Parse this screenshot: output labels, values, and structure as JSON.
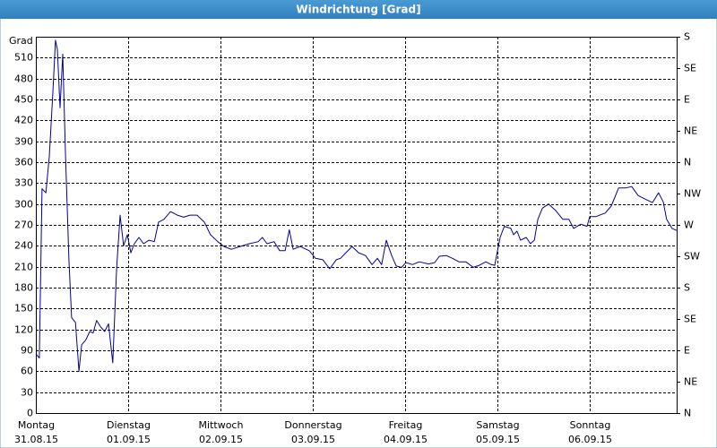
{
  "chart_data": {
    "type": "line",
    "title": "Windrichtung [Grad]",
    "y_label": "Grad",
    "grid": true,
    "xlim": [
      0,
      166.6
    ],
    "xticks": [
      {
        "value": 0,
        "label": "Montag",
        "sublabel": "31.08.15"
      },
      {
        "value": 24,
        "label": "Dienstag",
        "sublabel": "01.09.15"
      },
      {
        "value": 48,
        "label": "Mittwoch",
        "sublabel": "02.09.15"
      },
      {
        "value": 72,
        "label": "Donnerstag",
        "sublabel": "03.09.15"
      },
      {
        "value": 96,
        "label": "Freitag",
        "sublabel": "04.09.15"
      },
      {
        "value": 120,
        "label": "Samstag",
        "sublabel": "05.09.15"
      },
      {
        "value": 144,
        "label": "Sonntag",
        "sublabel": "06.09.15"
      }
    ],
    "ylim": [
      0,
      540
    ],
    "yticks": [
      0,
      30,
      60,
      90,
      120,
      150,
      180,
      210,
      240,
      270,
      300,
      330,
      360,
      390,
      420,
      450,
      480,
      510
    ],
    "y2lim": [
      0,
      540
    ],
    "y2ticks": [
      {
        "value": 0,
        "label": "N"
      },
      {
        "value": 45,
        "label": "NE"
      },
      {
        "value": 90,
        "label": "E"
      },
      {
        "value": 135,
        "label": "SE"
      },
      {
        "value": 180,
        "label": "S"
      },
      {
        "value": 225,
        "label": "SW"
      },
      {
        "value": 270,
        "label": "W"
      },
      {
        "value": 315,
        "label": "NW"
      },
      {
        "value": 360,
        "label": "N"
      },
      {
        "value": 405,
        "label": "NE"
      },
      {
        "value": 450,
        "label": "E"
      },
      {
        "value": 495,
        "label": "SE"
      },
      {
        "value": 540,
        "label": "S"
      }
    ],
    "series": [
      {
        "color": "#000099",
        "x": [
          0,
          0.9,
          1.6,
          2.6,
          3.5,
          4.4,
          5.1,
          5.6,
          6.3,
          7.0,
          7.7,
          8.6,
          9.3,
          10.3,
          11.2,
          11.9,
          13.0,
          14.0,
          14.9,
          15.8,
          16.8,
          17.9,
          18.9,
          20.0,
          21.0,
          21.9,
          22.8,
          23.8,
          24.7,
          25.6,
          26.8,
          28.0,
          29.4,
          30.8,
          31.9,
          33.3,
          35.0,
          36.8,
          38.4,
          40.1,
          41.9,
          43.8,
          45.4,
          47.3,
          48.9,
          50.8,
          53.1,
          55.5,
          57.8,
          58.9,
          60.1,
          61.9,
          63.4,
          64.8,
          65.9,
          66.9,
          68.7,
          71.1,
          72.7,
          74.6,
          76.4,
          78.1,
          79.2,
          80.6,
          82.2,
          83.9,
          85.7,
          87.4,
          88.8,
          89.9,
          91.1,
          92.5,
          93.7,
          95.1,
          96.2,
          97.9,
          99.7,
          102.1,
          103.7,
          104.9,
          106.7,
          108.3,
          110.0,
          111.8,
          113.7,
          115.3,
          117.0,
          118.4,
          119.3,
          120.7,
          121.8,
          123.5,
          124.2,
          125.1,
          126.0,
          127.5,
          128.6,
          129.6,
          130.5,
          131.7,
          133.3,
          135.1,
          137.0,
          138.6,
          139.8,
          141.7,
          143.3,
          144.0,
          145.6,
          148.0,
          149.6,
          151.5,
          153.3,
          154.9,
          156.6,
          158.4,
          160.3,
          161.9,
          163.1,
          164.0,
          165.4,
          166.6
        ],
        "values": [
          85,
          79,
          322,
          316,
          368,
          458,
          535,
          522,
          438,
          515,
          374,
          220,
          137,
          130,
          60,
          98,
          105,
          117,
          115,
          133,
          124,
          117,
          128,
          72,
          207,
          284,
          240,
          256,
          230,
          243,
          252,
          243,
          248,
          246,
          274,
          278,
          289,
          284,
          281,
          284,
          284,
          274,
          256,
          246,
          239,
          235,
          239,
          243,
          246,
          252,
          243,
          246,
          233,
          233,
          263,
          235,
          239,
          233,
          222,
          220,
          207,
          220,
          222,
          230,
          239,
          230,
          226,
          213,
          222,
          213,
          248,
          226,
          211,
          209,
          216,
          213,
          217,
          214,
          216,
          225,
          226,
          222,
          217,
          217,
          209,
          212,
          217,
          213,
          212,
          252,
          268,
          265,
          256,
          261,
          248,
          252,
          243,
          248,
          278,
          294,
          300,
          291,
          278,
          278,
          265,
          271,
          268,
          282,
          282,
          287,
          297,
          323,
          323,
          325,
          312,
          307,
          302,
          316,
          303,
          278,
          265,
          262
        ]
      }
    ]
  }
}
